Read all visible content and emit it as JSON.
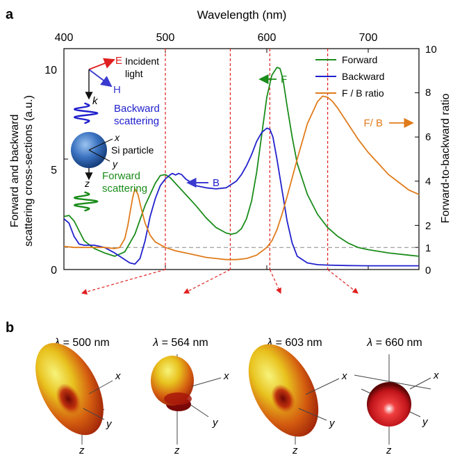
{
  "panel_a": {
    "label": "a",
    "chart_data": {
      "type": "line",
      "title": "",
      "xlabel": "Wavelength (nm)",
      "ylabel_left_line1": "Forward and backward",
      "ylabel_left_line2": "scattering cross-sections (a.u.)",
      "ylabel_right": "Forward-to-backward ratio",
      "xlim": [
        400,
        750
      ],
      "ylim_left": [
        0,
        10
      ],
      "ylim_right": [
        0,
        10
      ],
      "x_ticks": [
        "400",
        "500",
        "600",
        "700"
      ],
      "y_ticks_left": [
        "0",
        "5",
        "10"
      ],
      "y_ticks_right": [
        "0",
        "1",
        "2",
        "4",
        "6",
        "8",
        "10"
      ],
      "grid": false,
      "legend_position": "top-right",
      "reference_line_right": 1,
      "marked_wavelengths": [
        500,
        564,
        603,
        660
      ],
      "series": [
        {
          "name": "Forward",
          "color": "#1a8c1a",
          "axis": "left",
          "x": [
            400,
            405,
            410,
            415,
            420,
            430,
            440,
            450,
            460,
            470,
            480,
            490,
            495,
            500,
            505,
            510,
            520,
            530,
            540,
            550,
            560,
            565,
            570,
            575,
            580,
            585,
            590,
            595,
            600,
            605,
            610,
            613,
            616,
            620,
            625,
            630,
            640,
            650,
            660,
            670,
            680,
            690,
            700,
            720,
            740,
            750
          ],
          "values": [
            2.4,
            2.45,
            2.2,
            1.75,
            1.3,
            0.95,
            0.75,
            0.6,
            0.8,
            1.6,
            2.9,
            3.9,
            4.25,
            4.3,
            4.15,
            3.9,
            3.4,
            2.9,
            2.35,
            1.9,
            1.65,
            1.6,
            1.65,
            1.85,
            2.3,
            3.1,
            4.4,
            6.1,
            7.8,
            8.8,
            9.15,
            9.1,
            8.6,
            7.4,
            6.0,
            4.8,
            3.4,
            2.5,
            1.9,
            1.5,
            1.2,
            1.0,
            0.9,
            0.75,
            0.65,
            0.6
          ]
        },
        {
          "name": "Backward",
          "color": "#2020cc",
          "axis": "left",
          "x": [
            400,
            405,
            410,
            415,
            420,
            430,
            440,
            450,
            460,
            465,
            470,
            475,
            480,
            485,
            490,
            495,
            500,
            505,
            507,
            510,
            513,
            516,
            520,
            530,
            540,
            550,
            560,
            570,
            575,
            580,
            585,
            590,
            595,
            600,
            603,
            606,
            610,
            615,
            620,
            625,
            630,
            640,
            650,
            660,
            680,
            700,
            720,
            740,
            750
          ],
          "values": [
            2.3,
            2.1,
            1.5,
            1.15,
            1.1,
            1.1,
            1.0,
            0.75,
            0.45,
            0.3,
            0.25,
            0.5,
            1.3,
            2.4,
            3.2,
            3.8,
            4.1,
            4.3,
            4.35,
            4.28,
            4.35,
            4.3,
            4.1,
            3.8,
            3.7,
            3.65,
            3.7,
            4.0,
            4.3,
            4.7,
            5.2,
            5.8,
            6.2,
            6.4,
            6.35,
            6.0,
            5.0,
            3.6,
            2.2,
            1.2,
            0.6,
            0.3,
            0.22,
            0.2,
            0.18,
            0.17,
            0.17,
            0.17,
            0.17
          ]
        },
        {
          "name": "F / B ratio",
          "color": "#e07b1a",
          "axis": "right",
          "x": [
            400,
            410,
            420,
            430,
            440,
            450,
            455,
            460,
            463,
            466,
            468,
            470,
            473,
            476,
            480,
            485,
            490,
            500,
            510,
            520,
            530,
            540,
            550,
            560,
            570,
            580,
            590,
            600,
            605,
            610,
            615,
            620,
            630,
            640,
            650,
            655,
            660,
            665,
            670,
            680,
            690,
            700,
            710,
            720,
            730,
            740,
            750
          ],
          "values": [
            1.05,
            1.0,
            1.0,
            1.0,
            1.0,
            0.95,
            1.0,
            1.4,
            2.0,
            2.8,
            3.3,
            3.65,
            3.4,
            2.8,
            2.1,
            1.55,
            1.25,
            1.0,
            0.85,
            0.75,
            0.65,
            0.55,
            0.5,
            0.45,
            0.45,
            0.5,
            0.65,
            1.0,
            1.3,
            1.8,
            2.5,
            3.3,
            5.0,
            6.6,
            7.6,
            7.85,
            7.8,
            7.6,
            7.3,
            6.6,
            5.9,
            5.3,
            4.8,
            4.3,
            3.95,
            3.6,
            3.4
          ]
        }
      ],
      "annotations": {
        "incident_light_line1": "Incident",
        "incident_light_line2": "light",
        "e_label": "E",
        "h_label": "H",
        "k_label": "k",
        "backward_scattering_line1": "Backward",
        "backward_scattering_line2": "scattering",
        "forward_scattering_line1": "Forward",
        "forward_scattering_line2": "scattering",
        "particle_label": "Si particle",
        "x_label": "x",
        "y_label": "y",
        "z_label": "z",
        "f_arrow_label": "F",
        "b_arrow_label": "B",
        "fb_arrow_label": "F/ B"
      }
    }
  },
  "panel_b": {
    "label": "b",
    "pattern_titles": [
      {
        "prefix": "λ",
        "text": " = 500 nm"
      },
      {
        "prefix": "λ",
        "text": " = 564 nm"
      },
      {
        "prefix": "λ",
        "text": " = 603 nm"
      },
      {
        "prefix": "λ",
        "text": " = 660 nm"
      }
    ],
    "axis_labels": {
      "x": "x",
      "y": "y",
      "z": "z"
    }
  },
  "colors": {
    "forward": "#1a8c1a",
    "backward": "#2020cc",
    "ratio": "#e07b1a",
    "marker_lines": "#e02020",
    "reference_line": "#888888"
  }
}
